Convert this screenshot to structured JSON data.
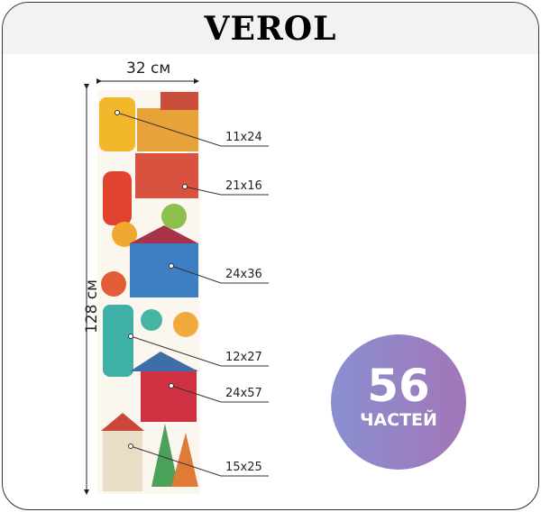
{
  "brand": "VEROL",
  "dimensions": {
    "width": "32 см",
    "height": "128 см"
  },
  "parts": [
    "11x24",
    "21x16",
    "24x36",
    "12x27",
    "24x57",
    "15x25"
  ],
  "badge": {
    "count": "56",
    "label": "ЧАСТЕЙ",
    "gradient": [
      "#8a8fd0",
      "#a276b8"
    ]
  }
}
